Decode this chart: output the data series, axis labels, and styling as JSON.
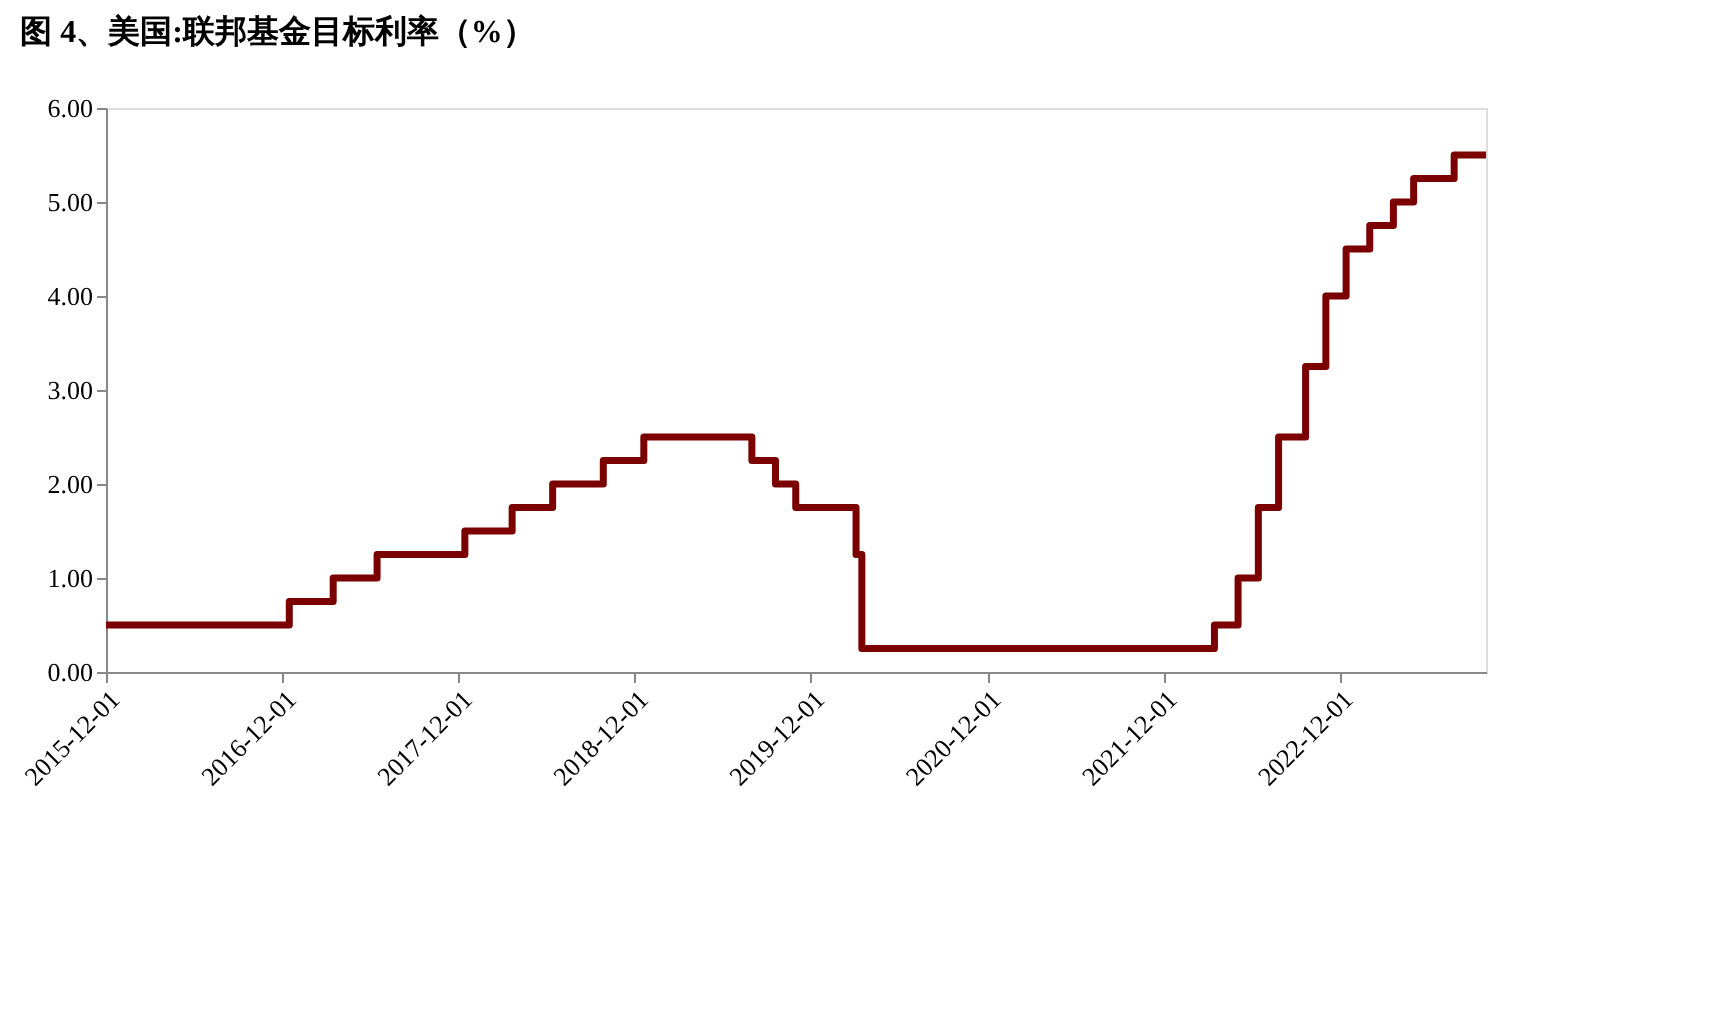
{
  "chart_data": {
    "type": "step",
    "title": "图 4、美国:联邦基金目标利率（%）",
    "x": [
      "2015-12-01",
      "2016-12-15",
      "2017-03-16",
      "2017-06-15",
      "2017-12-14",
      "2018-03-22",
      "2018-06-14",
      "2018-09-27",
      "2018-12-20",
      "2019-08-01",
      "2019-09-19",
      "2019-10-31",
      "2020-03-04",
      "2020-03-16",
      "2022-03-17",
      "2022-05-05",
      "2022-06-16",
      "2022-07-28",
      "2022-09-22",
      "2022-11-03",
      "2022-12-15",
      "2023-02-02",
      "2023-03-23",
      "2023-05-04",
      "2023-07-27",
      "2023-10-01"
    ],
    "series": [
      {
        "color": "#7b0000",
        "values": [
          0.5,
          0.75,
          1.0,
          1.25,
          1.5,
          1.75,
          2.0,
          2.25,
          2.5,
          2.25,
          2.0,
          1.75,
          1.25,
          0.25,
          0.5,
          1.0,
          1.75,
          2.5,
          3.25,
          4.0,
          4.5,
          4.75,
          5.0,
          5.25,
          5.5,
          5.5
        ]
      }
    ],
    "xlim": [
      "2015-12-01",
      "2023-10-01"
    ],
    "xticks": [
      "2015-12-01",
      "2016-12-01",
      "2017-12-01",
      "2018-12-01",
      "2019-12-01",
      "2020-12-01",
      "2021-12-01",
      "2022-12-01"
    ],
    "ylim": [
      0,
      6
    ],
    "yticks": [
      {
        "value": 0,
        "label": "0.00"
      },
      {
        "value": 1,
        "label": "1.00"
      },
      {
        "value": 2,
        "label": "2.00"
      },
      {
        "value": 3,
        "label": "3.00"
      },
      {
        "value": 4,
        "label": "4.00"
      },
      {
        "value": 5,
        "label": "5.00"
      },
      {
        "value": 6,
        "label": "6.00"
      }
    ],
    "grid": false,
    "legend": false,
    "marker": "none",
    "line_style": "solid"
  }
}
